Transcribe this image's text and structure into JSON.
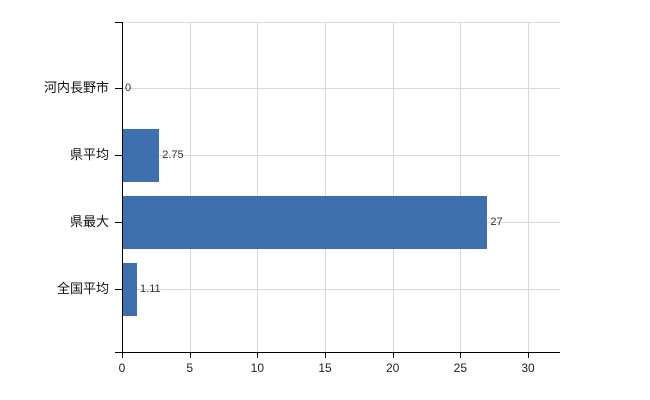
{
  "chart": {
    "background_color": "#ffffff",
    "axis_color": "#000000",
    "grid_color": "#d9d9d9",
    "bar_color": "#3e6fae",
    "category_label_color": "#111111",
    "tick_label_color": "#222222",
    "value_label_color": "#333333"
  },
  "chart_data": {
    "type": "bar",
    "orientation": "horizontal",
    "title": "",
    "subtitle": "",
    "xlabel": "",
    "ylabel": "",
    "categories": [
      "河内長野市",
      "県平均",
      "県最大",
      "全国平均"
    ],
    "values": [
      0,
      2.75,
      27,
      1.11
    ],
    "value_labels": [
      "0",
      "2.75",
      "27",
      "1.11"
    ],
    "x_ticks": [
      0,
      5,
      10,
      15,
      20,
      25,
      30
    ],
    "x_tick_labels": [
      "0",
      "5",
      "10",
      "15",
      "20",
      "25",
      "30"
    ],
    "xlim": [
      0,
      32.4
    ],
    "grid": true,
    "legend": false,
    "legend_position": "none"
  }
}
